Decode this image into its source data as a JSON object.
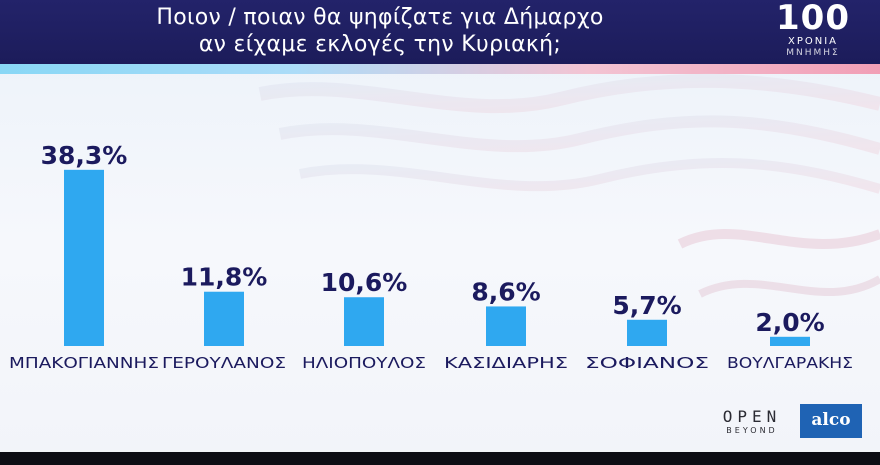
{
  "header": {
    "title_line1": "Ποιον / ποιαν θα ψηφίζατε για Δήμαρχο",
    "title_line2": "αν είχαμε εκλογές την Κυριακή;"
  },
  "logo_100": {
    "number": "100",
    "line1": "ΧΡΟΝΙΑ",
    "line2": "ΜΝΗΜΗΣ"
  },
  "brands": {
    "open_main": "OPEN",
    "open_sub": "BEYOND",
    "alco": "alco"
  },
  "colors": {
    "bar": "#2fa8f0",
    "value_label": "#1b1a5e",
    "category_label": "#1b1a5e",
    "header_bg": "#1c1c5a"
  },
  "chart_data": {
    "type": "bar",
    "title": "Ποιον / ποιαν θα ψηφίζατε για Δήμαρχο αν είχαμε εκλογές την Κυριακή;",
    "categories": [
      "ΜΠΑΚΟΓΙΑΝΝΗΣ",
      "ΓΕΡΟΥΛΑΝΟΣ",
      "ΗΛΙΟΠΟΥΛΟΣ",
      "ΚΑΣΙΔΙΑΡΗΣ",
      "ΣΟΦΙΑΝΟΣ",
      "ΒΟΥΛΓΑΡΑΚΗΣ"
    ],
    "values": [
      38.3,
      11.8,
      10.6,
      8.6,
      5.7,
      2.0
    ],
    "value_labels": [
      "38,3%",
      "11,8%",
      "10,6%",
      "8,6%",
      "5,7%",
      "2,0%"
    ],
    "unit": "%",
    "xlabel": "",
    "ylabel": "",
    "grid": false,
    "legend": "none"
  }
}
